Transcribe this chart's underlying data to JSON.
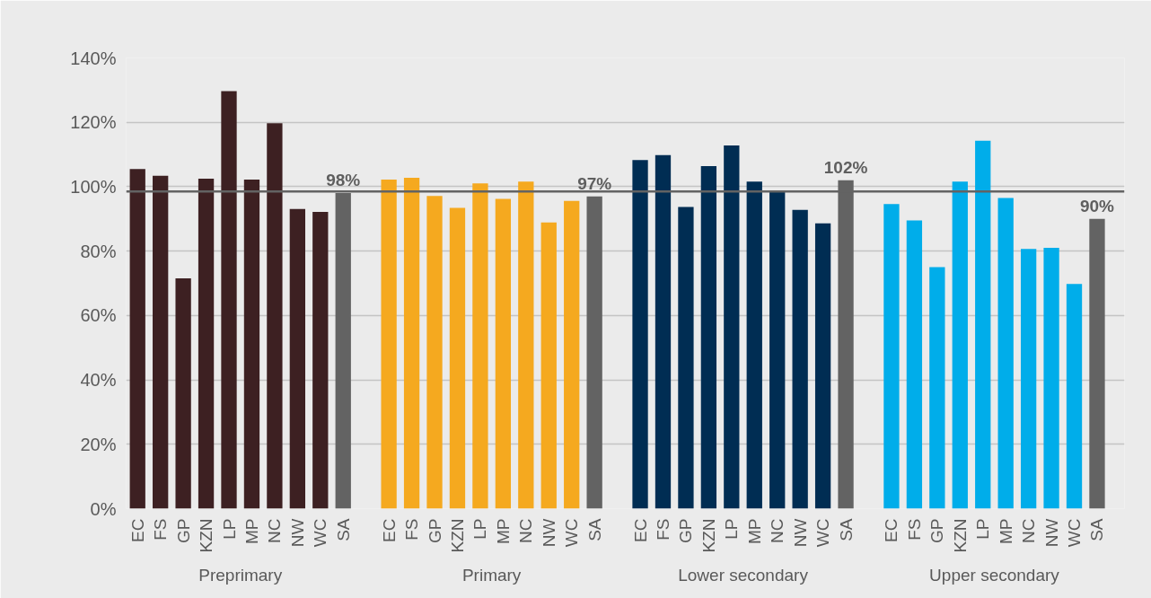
{
  "chart_data": {
    "type": "bar",
    "categories": [
      "EC",
      "FS",
      "GP",
      "KZN",
      "LP",
      "MP",
      "NC",
      "NW",
      "WC",
      "SA",
      "EC",
      "FS",
      "GP",
      "KZN",
      "LP",
      "MP",
      "NC",
      "NW",
      "WC",
      "SA",
      "EC",
      "FS",
      "GP",
      "KZN",
      "LP",
      "MP",
      "NC",
      "NW",
      "WC",
      "SA",
      "EC",
      "FS",
      "GP",
      "KZN",
      "LP",
      "MP",
      "NC",
      "NW",
      "WC",
      "SA"
    ],
    "values": [
      105.5,
      103.4,
      71.5,
      102.5,
      129.7,
      102.2,
      119.7,
      93.1,
      92.2,
      98,
      102.2,
      102.8,
      97.1,
      93.4,
      101,
      96.2,
      101.6,
      88.9,
      95.6,
      97,
      108.3,
      109.8,
      93.7,
      106.4,
      112.8,
      101.6,
      98.3,
      92.8,
      88.6,
      102,
      94.6,
      89.5,
      75,
      101.6,
      114.3,
      96.5,
      80.7,
      81,
      69.8,
      90
    ],
    "colors": [
      "#3d2022",
      "#3d2022",
      "#3d2022",
      "#3d2022",
      "#3d2022",
      "#3d2022",
      "#3d2022",
      "#3d2022",
      "#3d2022",
      "#636363",
      "#f5a91f",
      "#f5a91f",
      "#f5a91f",
      "#f5a91f",
      "#f5a91f",
      "#f5a91f",
      "#f5a91f",
      "#f5a91f",
      "#f5a91f",
      "#636363",
      "#002d53",
      "#002d53",
      "#002d53",
      "#002d53",
      "#002d53",
      "#002d53",
      "#002d53",
      "#002d53",
      "#002d53",
      "#636363",
      "#00adea",
      "#00adea",
      "#00adea",
      "#00adea",
      "#00adea",
      "#00adea",
      "#00adea",
      "#00adea",
      "#00adea",
      "#636363"
    ],
    "value_labels": [
      null,
      null,
      null,
      null,
      null,
      null,
      null,
      null,
      null,
      "98%",
      null,
      null,
      null,
      null,
      null,
      null,
      null,
      null,
      null,
      "97%",
      null,
      null,
      null,
      null,
      null,
      null,
      null,
      null,
      null,
      "102%",
      null,
      null,
      null,
      null,
      null,
      null,
      null,
      null,
      null,
      "90%"
    ],
    "annotations": [
      "Preprimary",
      "Primary",
      "Lower secondary",
      "Upper secondary"
    ],
    "ylim": [
      0,
      140
    ],
    "yticks": [
      {
        "value": 0,
        "label": "0%"
      },
      {
        "value": 20,
        "label": "20%"
      },
      {
        "value": 40,
        "label": "40%"
      },
      {
        "value": 60,
        "label": "60%"
      },
      {
        "value": 80,
        "label": "80%"
      },
      {
        "value": 100,
        "label": "100%"
      },
      {
        "value": 120,
        "label": "120%"
      },
      {
        "value": 140,
        "label": "140%"
      }
    ],
    "grid": "y",
    "ref_lines": [
      {
        "axis": "y",
        "value": 98.5,
        "label": null,
        "color": "#636363"
      }
    ]
  }
}
